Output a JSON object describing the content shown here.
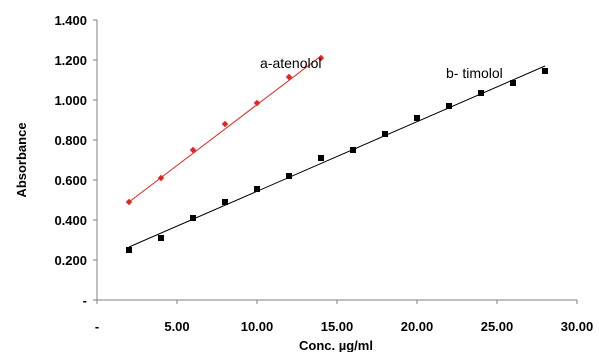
{
  "chart_data": {
    "type": "scatter",
    "title": "",
    "xlabel": "Conc. µg/ml",
    "ylabel": "Absorbance",
    "xlim": [
      0,
      30
    ],
    "ylim": [
      0,
      1.4
    ],
    "x_ticks": [
      0,
      5,
      10,
      15,
      20,
      25,
      30
    ],
    "x_tick_labels": [
      "-",
      "5.00",
      "10.00",
      "15.00",
      "20.00",
      "25.00",
      "30.00"
    ],
    "y_ticks": [
      0,
      0.2,
      0.4,
      0.6,
      0.8,
      1.0,
      1.2,
      1.4
    ],
    "y_tick_labels": [
      "-",
      "0.200",
      "0.400",
      "0.600",
      "0.800",
      "1.000",
      "1.200",
      "1.400"
    ],
    "grid": false,
    "legend": "none",
    "series": [
      {
        "label": "a-atenolol",
        "color": "#e8231e",
        "marker": "diamond",
        "x": [
          2,
          4,
          6,
          8,
          10,
          12,
          14
        ],
        "y": [
          0.49,
          0.61,
          0.75,
          0.88,
          0.985,
          1.115,
          1.21
        ],
        "trendline": {
          "x": [
            2,
            14
          ],
          "y": [
            0.49,
            1.22
          ]
        }
      },
      {
        "label": "b- timolol",
        "color": "#000000",
        "marker": "square",
        "x": [
          2,
          4,
          6,
          8,
          10,
          12,
          14,
          16,
          18,
          20,
          22,
          24,
          26,
          28
        ],
        "y": [
          0.25,
          0.31,
          0.41,
          0.49,
          0.555,
          0.62,
          0.71,
          0.75,
          0.83,
          0.91,
          0.97,
          1.035,
          1.085,
          1.145
        ],
        "trendline": {
          "x": [
            2,
            28
          ],
          "y": [
            0.265,
            1.17
          ]
        }
      }
    ]
  }
}
